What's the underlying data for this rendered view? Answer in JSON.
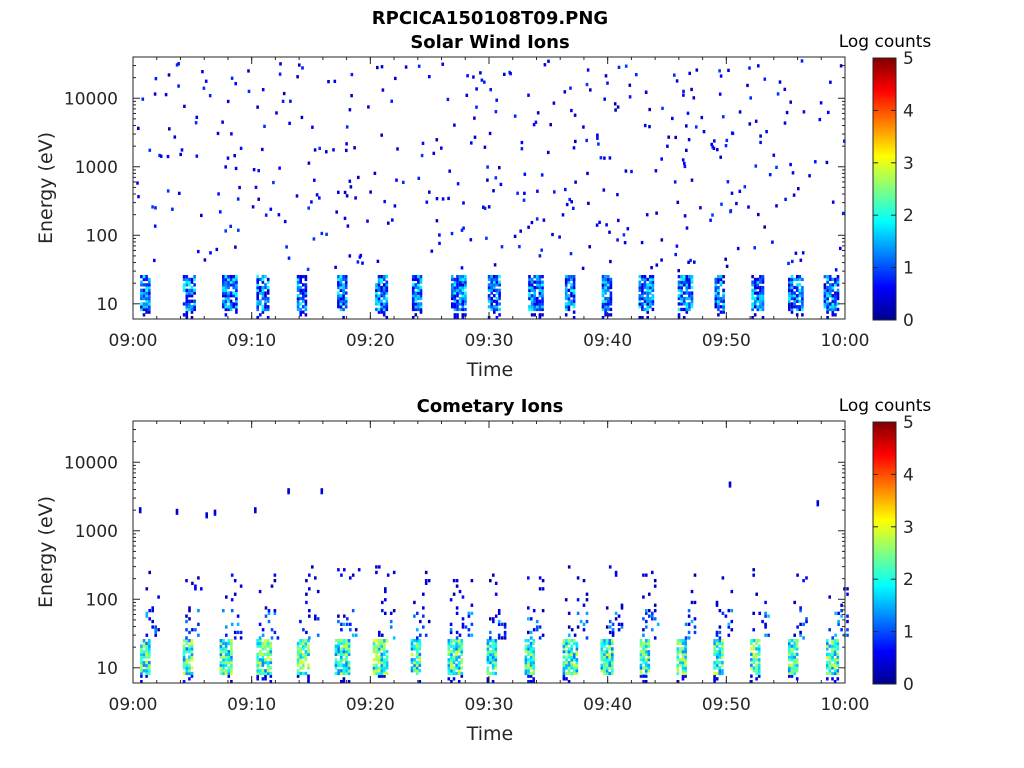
{
  "figure": {
    "title": "RPCICA150108T09.PNG"
  },
  "colorbar": {
    "colors": [
      "#00008f",
      "#0000ff",
      "#0080ff",
      "#00ffff",
      "#80ff80",
      "#ffff00",
      "#ff8000",
      "#ff0000",
      "#800000"
    ]
  },
  "chart_data": [
    {
      "type": "heatmap",
      "title": "Solar Wind Ions",
      "xlabel": "Time",
      "ylabel": "Energy (eV)",
      "x_ticks": [
        "09:00",
        "09:10",
        "09:20",
        "09:30",
        "09:40",
        "09:50",
        "10:00"
      ],
      "x_range_minutes": [
        0,
        60
      ],
      "y_scale": "log",
      "y_ticks": [
        "10",
        "100",
        "1000",
        "10000"
      ],
      "y_tick_values": [
        10,
        100,
        1000,
        10000
      ],
      "y_range_eV": [
        6,
        40000
      ],
      "colorbar_label": "Log counts",
      "colorbar_ticks": [
        "0",
        "1",
        "2",
        "3",
        "4",
        "5"
      ],
      "colorbar_range": [
        0,
        5
      ],
      "seed": 7,
      "band_times_min": [
        1.2,
        4.8,
        8.1,
        11.0,
        14.4,
        17.8,
        21.0,
        24.1,
        27.4,
        30.5,
        33.9,
        37.0,
        40.1,
        43.2,
        46.5,
        49.6,
        52.7,
        55.8,
        58.8
      ],
      "band_energy_eV": [
        8,
        25
      ],
      "band_log_counts": [
        0.3,
        2.0
      ],
      "scatter_energy_eV": [
        30,
        35000
      ],
      "scatter_log_counts": [
        0.2,
        0.9
      ],
      "scatter_count": 420
    },
    {
      "type": "heatmap",
      "title": "Cometary Ions",
      "xlabel": "Time",
      "ylabel": "Energy (eV)",
      "x_ticks": [
        "09:00",
        "09:10",
        "09:20",
        "09:30",
        "09:40",
        "09:50",
        "10:00"
      ],
      "x_range_minutes": [
        0,
        60
      ],
      "y_scale": "log",
      "y_ticks": [
        "10",
        "100",
        "1000",
        "10000"
      ],
      "y_tick_values": [
        10,
        100,
        1000,
        10000
      ],
      "y_range_eV": [
        6,
        40000
      ],
      "colorbar_label": "Log counts",
      "colorbar_ticks": [
        "0",
        "1",
        "2",
        "3",
        "4",
        "5"
      ],
      "colorbar_range": [
        0,
        5
      ],
      "seed": 19,
      "band_times_min": [
        1.2,
        4.8,
        7.9,
        11.0,
        14.4,
        17.6,
        20.8,
        24.0,
        27.1,
        30.4,
        33.6,
        36.8,
        40.0,
        43.3,
        46.4,
        49.5,
        52.6,
        55.8,
        59.0
      ],
      "band_energy_eV": [
        8,
        25
      ],
      "band_log_counts": [
        1.2,
        3.0
      ],
      "upper_energy_eV": [
        25,
        70
      ],
      "upper_log_counts": [
        0.1,
        1.6
      ],
      "spike_energy_eV": [
        70,
        300
      ],
      "sparse_points": [
        {
          "t": 0.5,
          "e": 1900
        },
        {
          "t": 3.6,
          "e": 1800
        },
        {
          "t": 6.1,
          "e": 1600
        },
        {
          "t": 6.8,
          "e": 1750
        },
        {
          "t": 10.2,
          "e": 1900
        },
        {
          "t": 13.0,
          "e": 3600
        },
        {
          "t": 15.8,
          "e": 3600
        },
        {
          "t": 50.2,
          "e": 4500
        },
        {
          "t": 57.6,
          "e": 2400
        }
      ]
    }
  ]
}
